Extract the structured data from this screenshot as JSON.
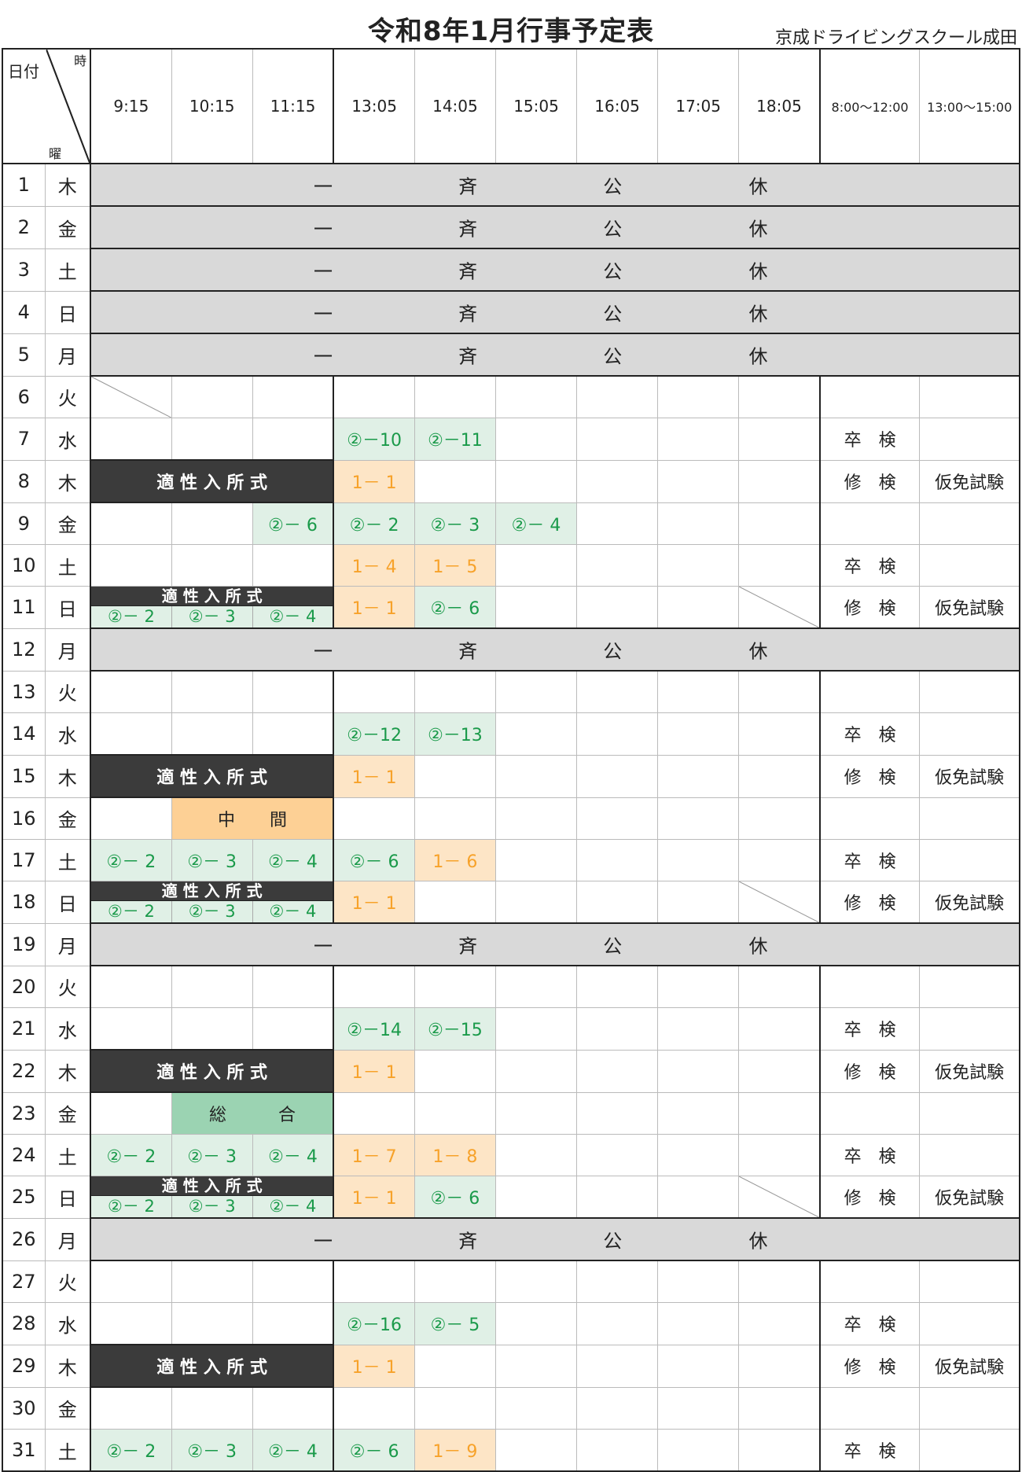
{
  "header": {
    "title": "令和8年1月行事予定表",
    "school": "京成ドライビングスクール成田",
    "corner": {
      "date": "日付",
      "time": "時",
      "dow": "曜"
    },
    "times": [
      "9:15",
      "10:15",
      "11:15",
      "13:05",
      "14:05",
      "15:05",
      "16:05",
      "17:05",
      "18:05"
    ],
    "right_cols": [
      "8:00～12:00",
      "13:00～15:00"
    ]
  },
  "holiday_text": [
    "一",
    "斉",
    "公",
    "休"
  ],
  "colors": {
    "green_bg": "#e0f0e6",
    "green_text": "#1a9a4a",
    "orange_bg": "#fde5c6",
    "orange_text": "#f7a22a",
    "dark": "#3b3b3b",
    "holiday": "#d9d9d9",
    "middle": "#fdd095",
    "sogo": "#9bd3b2"
  },
  "rows": [
    {
      "date": "1",
      "dow": "木",
      "holiday": true
    },
    {
      "date": "2",
      "dow": "金",
      "holiday": true
    },
    {
      "date": "3",
      "dow": "土",
      "holiday": true
    },
    {
      "date": "4",
      "dow": "日",
      "holiday": true
    },
    {
      "date": "5",
      "dow": "月",
      "holiday": true
    },
    {
      "date": "6",
      "dow": "火",
      "cells": [
        {
          "t": "",
          "diag": true
        },
        {
          "t": ""
        },
        {
          "t": ""
        },
        {
          "t": ""
        },
        {
          "t": ""
        },
        {
          "t": ""
        },
        {
          "t": ""
        },
        {
          "t": ""
        },
        {
          "t": ""
        }
      ],
      "r1": "",
      "r2": ""
    },
    {
      "date": "7",
      "dow": "水",
      "cells": [
        {
          "t": ""
        },
        {
          "t": ""
        },
        {
          "t": ""
        },
        {
          "t": "②－10",
          "c": "g"
        },
        {
          "t": "②－11",
          "c": "g"
        },
        {
          "t": ""
        },
        {
          "t": ""
        },
        {
          "t": ""
        },
        {
          "t": ""
        }
      ],
      "r1": "卒　検",
      "r2": ""
    },
    {
      "date": "8",
      "dow": "木",
      "cells": [
        {
          "t": "適 性 入 所 式",
          "c": "dark",
          "span": 3
        },
        {
          "t": "1－ 1",
          "c": "o"
        },
        {
          "t": ""
        },
        {
          "t": ""
        },
        {
          "t": ""
        },
        {
          "t": ""
        },
        {
          "t": ""
        }
      ],
      "r1": "修　検",
      "r2": "仮免試験"
    },
    {
      "date": "9",
      "dow": "金",
      "cells": [
        {
          "t": ""
        },
        {
          "t": ""
        },
        {
          "t": "②－ 6",
          "c": "g"
        },
        {
          "t": "②－ 2",
          "c": "g"
        },
        {
          "t": "②－ 3",
          "c": "g"
        },
        {
          "t": "②－ 4",
          "c": "g"
        },
        {
          "t": ""
        },
        {
          "t": ""
        },
        {
          "t": ""
        }
      ],
      "r1": "",
      "r2": ""
    },
    {
      "date": "10",
      "dow": "土",
      "cells": [
        {
          "t": ""
        },
        {
          "t": ""
        },
        {
          "t": ""
        },
        {
          "t": "1－ 4",
          "c": "o"
        },
        {
          "t": "1－ 5",
          "c": "o"
        },
        {
          "t": ""
        },
        {
          "t": ""
        },
        {
          "t": ""
        },
        {
          "t": ""
        }
      ],
      "r1": "卒　検",
      "r2": ""
    },
    {
      "date": "11",
      "dow": "日",
      "cells": [
        {
          "split": true,
          "top": "適 性 入 所 式",
          "bottom": [
            "②－ 2",
            "②－ 3",
            "②－ 4"
          ],
          "span": 3
        },
        {
          "t": "1－ 1",
          "c": "o"
        },
        {
          "t": "②－ 6",
          "c": "g"
        },
        {
          "t": ""
        },
        {
          "t": ""
        },
        {
          "t": ""
        },
        {
          "t": "",
          "diag": true
        }
      ],
      "r1": "修　検",
      "r2": "仮免試験"
    },
    {
      "date": "12",
      "dow": "月",
      "holiday": true
    },
    {
      "date": "13",
      "dow": "火",
      "cells": [
        {
          "t": ""
        },
        {
          "t": ""
        },
        {
          "t": ""
        },
        {
          "t": ""
        },
        {
          "t": ""
        },
        {
          "t": ""
        },
        {
          "t": ""
        },
        {
          "t": ""
        },
        {
          "t": ""
        }
      ],
      "r1": "",
      "r2": ""
    },
    {
      "date": "14",
      "dow": "水",
      "cells": [
        {
          "t": ""
        },
        {
          "t": ""
        },
        {
          "t": ""
        },
        {
          "t": "②－12",
          "c": "g"
        },
        {
          "t": "②－13",
          "c": "g"
        },
        {
          "t": ""
        },
        {
          "t": ""
        },
        {
          "t": ""
        },
        {
          "t": ""
        }
      ],
      "r1": "卒　検",
      "r2": ""
    },
    {
      "date": "15",
      "dow": "木",
      "cells": [
        {
          "t": "適 性 入 所 式",
          "c": "dark",
          "span": 3
        },
        {
          "t": "1－ 1",
          "c": "o"
        },
        {
          "t": ""
        },
        {
          "t": ""
        },
        {
          "t": ""
        },
        {
          "t": ""
        },
        {
          "t": ""
        }
      ],
      "r1": "修　検",
      "r2": "仮免試験"
    },
    {
      "date": "16",
      "dow": "金",
      "cells": [
        {
          "t": ""
        },
        {
          "t": "中　　間",
          "c": "mid",
          "span": 2
        },
        {
          "t": ""
        },
        {
          "t": ""
        },
        {
          "t": ""
        },
        {
          "t": ""
        },
        {
          "t": ""
        },
        {
          "t": ""
        }
      ],
      "r1": "",
      "r2": ""
    },
    {
      "date": "17",
      "dow": "土",
      "cells": [
        {
          "t": "②－ 2",
          "c": "g"
        },
        {
          "t": "②－ 3",
          "c": "g"
        },
        {
          "t": "②－ 4",
          "c": "g"
        },
        {
          "t": "②－ 6",
          "c": "g"
        },
        {
          "t": "1－ 6",
          "c": "o"
        },
        {
          "t": ""
        },
        {
          "t": ""
        },
        {
          "t": ""
        },
        {
          "t": ""
        }
      ],
      "r1": "卒　検",
      "r2": ""
    },
    {
      "date": "18",
      "dow": "日",
      "cells": [
        {
          "split": true,
          "top": "適 性 入 所 式",
          "bottom": [
            "②－ 2",
            "②－ 3",
            "②－ 4"
          ],
          "span": 3
        },
        {
          "t": "1－ 1",
          "c": "o"
        },
        {
          "t": ""
        },
        {
          "t": ""
        },
        {
          "t": ""
        },
        {
          "t": ""
        },
        {
          "t": "",
          "diag": true
        }
      ],
      "r1": "修　検",
      "r2": "仮免試験"
    },
    {
      "date": "19",
      "dow": "月",
      "holiday": true
    },
    {
      "date": "20",
      "dow": "火",
      "cells": [
        {
          "t": ""
        },
        {
          "t": ""
        },
        {
          "t": ""
        },
        {
          "t": ""
        },
        {
          "t": ""
        },
        {
          "t": ""
        },
        {
          "t": ""
        },
        {
          "t": ""
        },
        {
          "t": ""
        }
      ],
      "r1": "",
      "r2": ""
    },
    {
      "date": "21",
      "dow": "水",
      "cells": [
        {
          "t": ""
        },
        {
          "t": ""
        },
        {
          "t": ""
        },
        {
          "t": "②－14",
          "c": "g"
        },
        {
          "t": "②－15",
          "c": "g"
        },
        {
          "t": ""
        },
        {
          "t": ""
        },
        {
          "t": ""
        },
        {
          "t": ""
        }
      ],
      "r1": "卒　検",
      "r2": ""
    },
    {
      "date": "22",
      "dow": "木",
      "cells": [
        {
          "t": "適 性 入 所 式",
          "c": "dark",
          "span": 3
        },
        {
          "t": "1－ 1",
          "c": "o"
        },
        {
          "t": ""
        },
        {
          "t": ""
        },
        {
          "t": ""
        },
        {
          "t": ""
        },
        {
          "t": ""
        }
      ],
      "r1": "修　検",
      "r2": "仮免試験"
    },
    {
      "date": "23",
      "dow": "金",
      "cells": [
        {
          "t": ""
        },
        {
          "t": "総　　　合",
          "c": "sogo",
          "span": 2
        },
        {
          "t": ""
        },
        {
          "t": ""
        },
        {
          "t": ""
        },
        {
          "t": ""
        },
        {
          "t": ""
        },
        {
          "t": ""
        }
      ],
      "r1": "",
      "r2": ""
    },
    {
      "date": "24",
      "dow": "土",
      "cells": [
        {
          "t": "②－ 2",
          "c": "g"
        },
        {
          "t": "②－ 3",
          "c": "g"
        },
        {
          "t": "②－ 4",
          "c": "g"
        },
        {
          "t": "1－ 7",
          "c": "o"
        },
        {
          "t": "1－ 8",
          "c": "o"
        },
        {
          "t": ""
        },
        {
          "t": ""
        },
        {
          "t": ""
        },
        {
          "t": ""
        }
      ],
      "r1": "卒　検",
      "r2": ""
    },
    {
      "date": "25",
      "dow": "日",
      "cells": [
        {
          "split": true,
          "top": "適 性 入 所 式",
          "bottom": [
            "②－ 2",
            "②－ 3",
            "②－ 4"
          ],
          "span": 3
        },
        {
          "t": "1－ 1",
          "c": "o"
        },
        {
          "t": "②－ 6",
          "c": "g"
        },
        {
          "t": ""
        },
        {
          "t": ""
        },
        {
          "t": ""
        },
        {
          "t": "",
          "diag": true
        }
      ],
      "r1": "修　検",
      "r2": "仮免試験"
    },
    {
      "date": "26",
      "dow": "月",
      "holiday": true
    },
    {
      "date": "27",
      "dow": "火",
      "cells": [
        {
          "t": ""
        },
        {
          "t": ""
        },
        {
          "t": ""
        },
        {
          "t": ""
        },
        {
          "t": ""
        },
        {
          "t": ""
        },
        {
          "t": ""
        },
        {
          "t": ""
        },
        {
          "t": ""
        }
      ],
      "r1": "",
      "r2": ""
    },
    {
      "date": "28",
      "dow": "水",
      "cells": [
        {
          "t": ""
        },
        {
          "t": ""
        },
        {
          "t": ""
        },
        {
          "t": "②－16",
          "c": "g"
        },
        {
          "t": "②－ 5",
          "c": "g"
        },
        {
          "t": ""
        },
        {
          "t": ""
        },
        {
          "t": ""
        },
        {
          "t": ""
        }
      ],
      "r1": "卒　検",
      "r2": ""
    },
    {
      "date": "29",
      "dow": "木",
      "cells": [
        {
          "t": "適 性 入 所 式",
          "c": "dark",
          "span": 3
        },
        {
          "t": "1－ 1",
          "c": "o"
        },
        {
          "t": ""
        },
        {
          "t": ""
        },
        {
          "t": ""
        },
        {
          "t": ""
        },
        {
          "t": ""
        }
      ],
      "r1": "修　検",
      "r2": "仮免試験"
    },
    {
      "date": "30",
      "dow": "金",
      "cells": [
        {
          "t": ""
        },
        {
          "t": ""
        },
        {
          "t": ""
        },
        {
          "t": ""
        },
        {
          "t": ""
        },
        {
          "t": ""
        },
        {
          "t": ""
        },
        {
          "t": ""
        },
        {
          "t": ""
        }
      ],
      "r1": "",
      "r2": ""
    },
    {
      "date": "31",
      "dow": "土",
      "cells": [
        {
          "t": "②－ 2",
          "c": "g"
        },
        {
          "t": "②－ 3",
          "c": "g"
        },
        {
          "t": "②－ 4",
          "c": "g"
        },
        {
          "t": "②－ 6",
          "c": "g"
        },
        {
          "t": "1－ 9",
          "c": "o"
        },
        {
          "t": ""
        },
        {
          "t": ""
        },
        {
          "t": ""
        },
        {
          "t": ""
        }
      ],
      "r1": "卒　検",
      "r2": ""
    }
  ]
}
